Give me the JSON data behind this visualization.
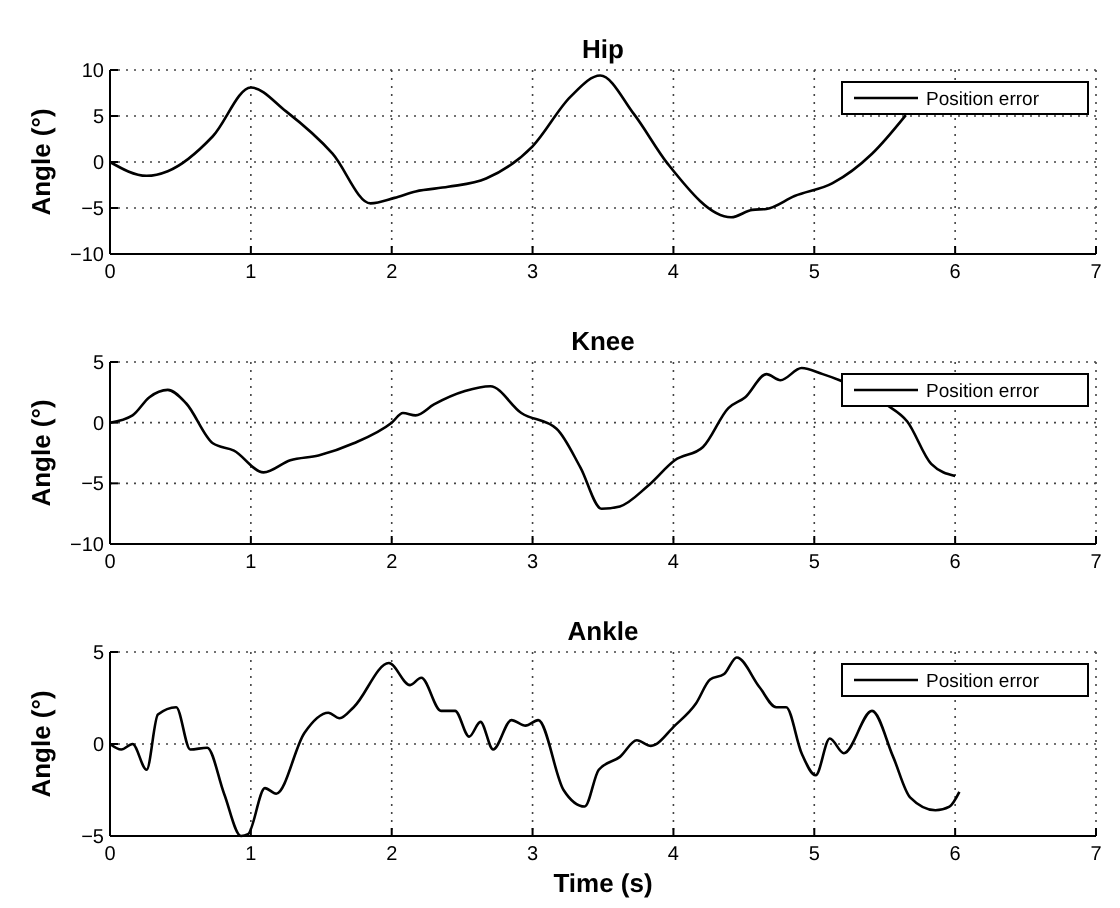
{
  "chart_data": [
    {
      "type": "line",
      "title": "Hip",
      "ylabel": "Angle (°)",
      "xlim": [
        0,
        7
      ],
      "xticks": [
        0,
        1,
        2,
        3,
        4,
        5,
        6,
        7
      ],
      "ylim": [
        -10,
        10
      ],
      "yticks": [
        -10,
        -5,
        0,
        5,
        10
      ],
      "grid": true,
      "legend": "top right",
      "line_style": "solid",
      "series": [
        {
          "name": "Position error",
          "color": "#000000",
          "x": [
            0,
            0.26,
            0.41,
            0.73,
            1.0,
            1.25,
            1.58,
            1.85,
            2.02,
            2.17,
            2.4,
            2.67,
            3.0,
            3.27,
            3.48,
            3.72,
            3.96,
            4.41,
            4.56,
            4.66,
            4.86,
            5.13,
            5.41,
            5.65
          ],
          "values": [
            0,
            -1.5,
            -1.0,
            2.8,
            8.1,
            5.5,
            0.9,
            -4.5,
            -3.9,
            -3.2,
            -2.7,
            -1.8,
            1.7,
            7.1,
            9.4,
            5.2,
            -0.2,
            -6.0,
            -5.2,
            -5.1,
            -3.7,
            -2.3,
            0.9,
            5.1
          ]
        }
      ]
    },
    {
      "type": "line",
      "title": "Knee",
      "ylabel": "Angle (°)",
      "xlim": [
        0,
        7
      ],
      "xticks": [
        0,
        1,
        2,
        3,
        4,
        5,
        6,
        7
      ],
      "ylim": [
        -10,
        5
      ],
      "yticks": [
        -10,
        -5,
        0,
        5
      ],
      "grid": true,
      "legend": "top right",
      "line_style": "solid",
      "series": [
        {
          "name": "Position error",
          "color": "#000000",
          "x": [
            0,
            0.16,
            0.28,
            0.41,
            0.54,
            0.73,
            0.88,
            1.09,
            1.28,
            1.48,
            1.73,
            2.0,
            2.08,
            2.17,
            2.3,
            2.52,
            2.7,
            2.92,
            3.17,
            3.34,
            3.49,
            3.62,
            3.82,
            4.01,
            4.21,
            4.39,
            4.51,
            4.66,
            4.76,
            4.91,
            5.06,
            5.18,
            5.51,
            5.66,
            5.83,
            6.0
          ],
          "values": [
            0,
            0.6,
            2.1,
            2.7,
            1.6,
            -1.7,
            -2.3,
            -4.1,
            -3.1,
            -2.7,
            -1.7,
            0,
            0.8,
            0.6,
            1.5,
            2.6,
            3.0,
            0.8,
            -0.5,
            -3.7,
            -7.1,
            -6.9,
            -5.2,
            -3.1,
            -2.0,
            1.2,
            2.1,
            4.0,
            3.5,
            4.5,
            4.0,
            3.5,
            1.5,
            0.1,
            -3.4,
            -4.4
          ]
        }
      ]
    },
    {
      "type": "line",
      "title": "Ankle",
      "xlabel": "Time (s)",
      "ylabel": "Angle (°)",
      "xlim": [
        0,
        7
      ],
      "xticks": [
        0,
        1,
        2,
        3,
        4,
        5,
        6,
        7
      ],
      "ylim": [
        -5,
        5
      ],
      "yticks": [
        -5,
        0,
        5
      ],
      "grid": true,
      "legend": "top right",
      "line_style": "solid",
      "series": [
        {
          "name": "Position error",
          "color": "#000000",
          "x": [
            0,
            0.08,
            0.16,
            0.26,
            0.34,
            0.47,
            0.57,
            0.69,
            0.81,
            0.93,
            0.98,
            1.1,
            1.18,
            1.38,
            1.55,
            1.63,
            1.73,
            1.98,
            2.13,
            2.21,
            2.35,
            2.45,
            2.55,
            2.63,
            2.72,
            2.85,
            2.95,
            3.04,
            3.22,
            3.37,
            3.47,
            3.62,
            3.74,
            3.84,
            4.01,
            4.16,
            4.26,
            4.36,
            4.45,
            4.61,
            4.73,
            4.8,
            4.91,
            5.01,
            5.11,
            5.21,
            5.41,
            5.56,
            5.68,
            5.86,
            5.96,
            6.03
          ],
          "values": [
            0,
            -0.3,
            0,
            -1.4,
            1.6,
            2.0,
            -0.3,
            -0.2,
            -2.7,
            -5.0,
            -4.9,
            -2.4,
            -2.7,
            0.6,
            1.7,
            1.4,
            2.0,
            4.4,
            3.2,
            3.6,
            1.8,
            1.8,
            0.4,
            1.2,
            -0.3,
            1.3,
            1.0,
            1.3,
            -2.5,
            -3.4,
            -1.4,
            -0.7,
            0.2,
            -0.1,
            1.0,
            2.2,
            3.5,
            3.8,
            4.7,
            3.1,
            2.0,
            2.0,
            -0.5,
            -1.7,
            0.3,
            -0.5,
            1.8,
            -0.7,
            -2.9,
            -3.6,
            -3.4,
            -2.6
          ]
        }
      ]
    }
  ]
}
